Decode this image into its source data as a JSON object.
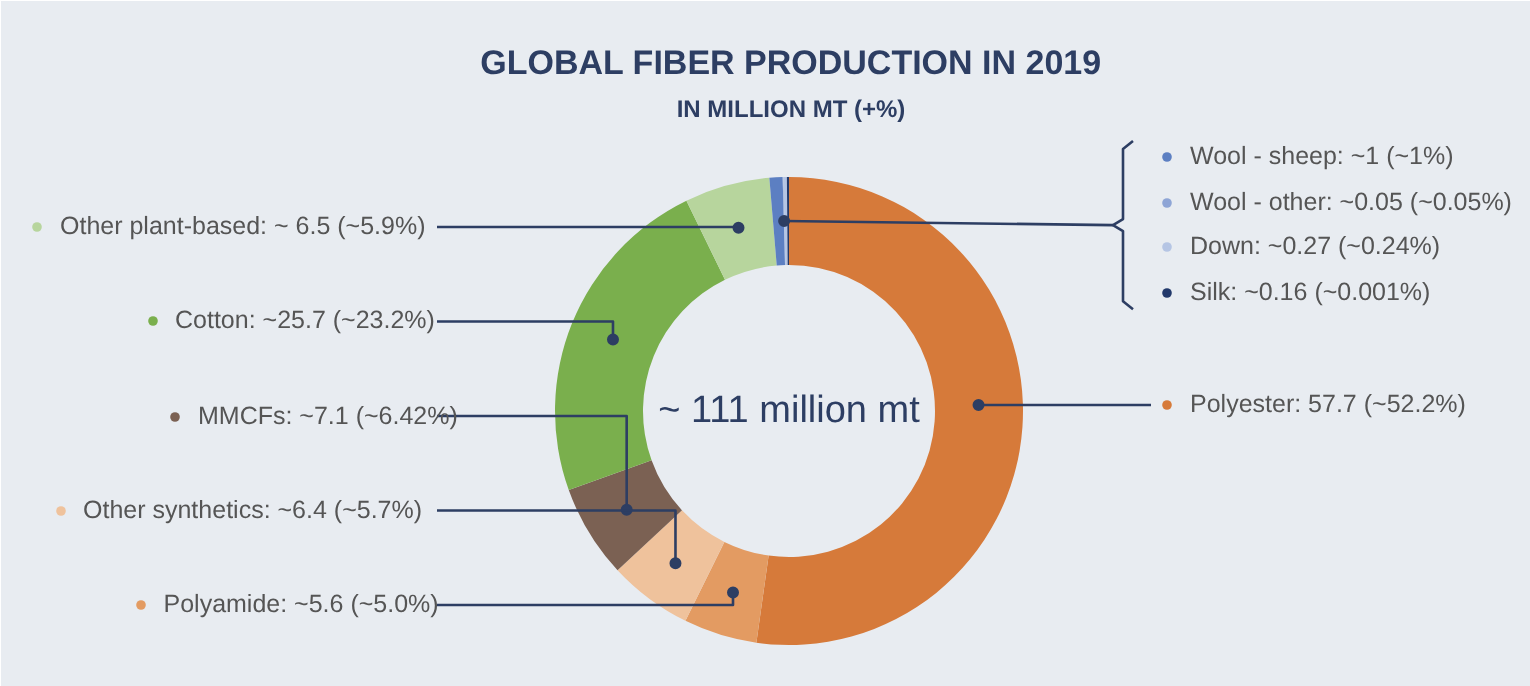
{
  "chart_data": {
    "type": "donut",
    "title": "GLOBAL FIBER PRODUCTION IN 2019",
    "subtitle": "IN MILLION MT (+%)",
    "categories": [
      "Polyester: 57.7 (~52.2%)",
      "Polyamide: ~5.6 (~5.0%)",
      "Other synthetics: ~6.4 (~5.7%)",
      "MMCFs: ~7.1 (~6.42%)",
      "Cotton: ~25.7 (~23.2%)",
      "Other plant-based: ~ 6.5 (~5.9%)",
      "Wool - sheep: ~1 (~1%)",
      "Wool - other: ~0.05 (~0.05%)",
      "Down: ~0.27 (~0.24%)",
      "Silk: ~0.16 (~0.001%)"
    ],
    "values": [
      57.7,
      5.6,
      6.4,
      7.1,
      25.7,
      6.5,
      1,
      0.05,
      0.27,
      0.16
    ],
    "colors": [
      "#d67a3a",
      "#e39b62",
      "#efc29c",
      "#7b6153",
      "#7aaf4d",
      "#b7d59d",
      "#5c7fc2",
      "#8ea5d6",
      "#b5c5e4",
      "#22396b"
    ],
    "annotations": [
      "~ 111 million mt"
    ],
    "legend": "top left"
  }
}
